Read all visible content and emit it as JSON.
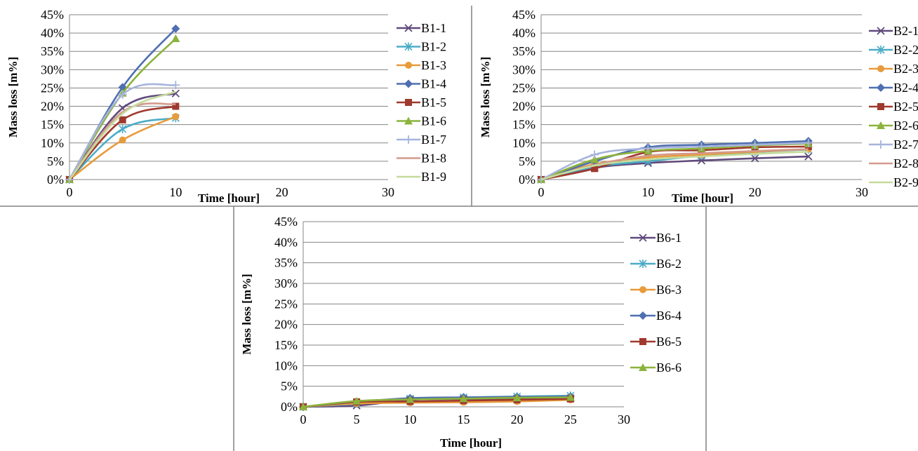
{
  "chart_data": [
    {
      "id": "B1",
      "type": "line",
      "xlabel": "Time [hour]",
      "ylabel": "Mass loss [m%]",
      "xlim": [
        0,
        30
      ],
      "ylim": [
        0,
        45
      ],
      "x_ticks": [
        "0",
        "10",
        "20",
        "30"
      ],
      "y_ticks": [
        "0%",
        "5%",
        "10%",
        "15%",
        "20%",
        "25%",
        "30%",
        "35%",
        "40%",
        "45%"
      ],
      "grid": "horizontal",
      "legend": "right",
      "series": [
        {
          "name": "B1-1",
          "color": "#604a7b",
          "marker": "x",
          "points": [
            [
              0,
              0
            ],
            [
              5,
              19.5
            ],
            [
              10,
              23.5
            ]
          ]
        },
        {
          "name": "B1-2",
          "color": "#4bacc6",
          "marker": "star",
          "points": [
            [
              0,
              0
            ],
            [
              5,
              13.8
            ],
            [
              10,
              16.8
            ]
          ]
        },
        {
          "name": "B1-3",
          "color": "#e79b3b",
          "marker": "circle",
          "points": [
            [
              0,
              0
            ],
            [
              5,
              10.8
            ],
            [
              10,
              17.2
            ]
          ]
        },
        {
          "name": "B1-4",
          "color": "#4f6fb0",
          "marker": "diamond",
          "points": [
            [
              0,
              0
            ],
            [
              5,
              25.2
            ],
            [
              10,
              41.2
            ]
          ]
        },
        {
          "name": "B1-5",
          "color": "#a0392d",
          "marker": "square",
          "points": [
            [
              0,
              0
            ],
            [
              5,
              16.3
            ],
            [
              10,
              20
            ]
          ]
        },
        {
          "name": "B1-6",
          "color": "#8cb33c",
          "marker": "triangle",
          "points": [
            [
              0,
              0
            ],
            [
              5,
              23.6
            ],
            [
              10,
              38.5
            ]
          ]
        },
        {
          "name": "B1-7",
          "color": "#a6b4dc",
          "marker": "plus",
          "points": [
            [
              0,
              0
            ],
            [
              5,
              23.2
            ],
            [
              10,
              25.8
            ]
          ]
        },
        {
          "name": "B1-8",
          "color": "#d49a8c",
          "marker": "none",
          "points": [
            [
              0,
              0
            ],
            [
              5,
              18.5
            ],
            [
              10,
              20.6
            ]
          ]
        },
        {
          "name": "B1-9",
          "color": "#c5db9c",
          "marker": "none",
          "points": [
            [
              0,
              0
            ],
            [
              5,
              18
            ],
            [
              10,
              24
            ]
          ]
        }
      ]
    },
    {
      "id": "B2",
      "type": "line",
      "xlabel": "Time [hour]",
      "ylabel": "Mass loss [m%]",
      "xlim": [
        0,
        30
      ],
      "ylim": [
        0,
        45
      ],
      "x_ticks": [
        "0",
        "10",
        "20",
        "30"
      ],
      "y_ticks": [
        "0%",
        "5%",
        "10%",
        "15%",
        "20%",
        "25%",
        "30%",
        "35%",
        "40%",
        "45%"
      ],
      "grid": "horizontal",
      "legend": "right",
      "series": [
        {
          "name": "B2-1",
          "color": "#604a7b",
          "marker": "x",
          "points": [
            [
              0,
              0
            ],
            [
              5,
              3.2
            ],
            [
              10,
              4.5
            ],
            [
              15,
              5.2
            ],
            [
              20,
              5.8
            ],
            [
              25,
              6.3
            ]
          ]
        },
        {
          "name": "B2-2",
          "color": "#4bacc6",
          "marker": "star",
          "points": [
            [
              0,
              0
            ],
            [
              5,
              3.5
            ],
            [
              10,
              5
            ],
            [
              15,
              6.5
            ],
            [
              20,
              7.5
            ],
            [
              25,
              8.2
            ]
          ]
        },
        {
          "name": "B2-3",
          "color": "#e79b3b",
          "marker": "circle",
          "points": [
            [
              0,
              0
            ],
            [
              5,
              4.2
            ],
            [
              10,
              6
            ],
            [
              15,
              6.8
            ],
            [
              20,
              7.6
            ],
            [
              25,
              8.3
            ]
          ]
        },
        {
          "name": "B2-4",
          "color": "#4f6fb0",
          "marker": "diamond",
          "points": [
            [
              0,
              0
            ],
            [
              5,
              5
            ],
            [
              10,
              8.8
            ],
            [
              15,
              9.5
            ],
            [
              20,
              10
            ],
            [
              25,
              10.5
            ]
          ]
        },
        {
          "name": "B2-5",
          "color": "#a0392d",
          "marker": "square",
          "points": [
            [
              0,
              0
            ],
            [
              5,
              3
            ],
            [
              10,
              7.5
            ],
            [
              15,
              8
            ],
            [
              20,
              8.8
            ],
            [
              25,
              9
            ]
          ]
        },
        {
          "name": "B2-6",
          "color": "#8cb33c",
          "marker": "triangle",
          "points": [
            [
              0,
              0
            ],
            [
              5,
              5.5
            ],
            [
              10,
              7.8
            ],
            [
              15,
              8.5
            ],
            [
              20,
              9.3
            ],
            [
              25,
              9.8
            ]
          ]
        },
        {
          "name": "B2-7",
          "color": "#a6b4dc",
          "marker": "plus",
          "points": [
            [
              0,
              0
            ],
            [
              5,
              6.8
            ],
            [
              10,
              8.5
            ],
            [
              15,
              9
            ],
            [
              20,
              9.5
            ],
            [
              25,
              10
            ]
          ]
        },
        {
          "name": "B2-8",
          "color": "#d49a8c",
          "marker": "none",
          "points": [
            [
              0,
              0
            ],
            [
              5,
              4
            ],
            [
              10,
              6.5
            ],
            [
              15,
              7.2
            ],
            [
              20,
              7.8
            ],
            [
              25,
              8.3
            ]
          ]
        },
        {
          "name": "B2-9",
          "color": "#c5db9c",
          "marker": "none",
          "points": [
            [
              0,
              0
            ],
            [
              5,
              3.8
            ],
            [
              10,
              5.5
            ],
            [
              15,
              6.3
            ],
            [
              20,
              7
            ],
            [
              25,
              7.6
            ]
          ]
        }
      ]
    },
    {
      "id": "B6",
      "type": "line",
      "xlabel": "Time  [hour]",
      "ylabel": "Mass loss [m%]",
      "xlim": [
        0,
        30
      ],
      "ylim": [
        0,
        45
      ],
      "x_ticks": [
        "0",
        "5",
        "10",
        "15",
        "20",
        "25",
        "30"
      ],
      "y_ticks": [
        "0%",
        "5%",
        "10%",
        "15%",
        "20%",
        "25%",
        "30%",
        "35%",
        "40%",
        "45%"
      ],
      "grid": "horizontal",
      "legend": "right",
      "series": [
        {
          "name": "B6-1",
          "color": "#604a7b",
          "marker": "x",
          "points": [
            [
              0,
              0
            ],
            [
              5,
              0.3
            ],
            [
              10,
              1.7
            ],
            [
              15,
              1.9
            ],
            [
              20,
              2
            ],
            [
              25,
              2.1
            ]
          ]
        },
        {
          "name": "B6-2",
          "color": "#4bacc6",
          "marker": "star",
          "points": [
            [
              0,
              0
            ],
            [
              5,
              0.8
            ],
            [
              10,
              2
            ],
            [
              15,
              2.3
            ],
            [
              20,
              2.5
            ],
            [
              25,
              2.7
            ]
          ]
        },
        {
          "name": "B6-3",
          "color": "#e79b3b",
          "marker": "circle",
          "points": [
            [
              0,
              0
            ],
            [
              5,
              0.8
            ],
            [
              10,
              1
            ],
            [
              15,
              1.1
            ],
            [
              20,
              1.3
            ],
            [
              25,
              1.7
            ]
          ]
        },
        {
          "name": "B6-4",
          "color": "#4f6fb0",
          "marker": "diamond",
          "points": [
            [
              0,
              0
            ],
            [
              5,
              1.2
            ],
            [
              10,
              2.1
            ],
            [
              15,
              2.3
            ],
            [
              20,
              2.4
            ],
            [
              25,
              2.5
            ]
          ]
        },
        {
          "name": "B6-5",
          "color": "#a0392d",
          "marker": "square",
          "points": [
            [
              0,
              0
            ],
            [
              5,
              1.2
            ],
            [
              10,
              1.3
            ],
            [
              15,
              1.5
            ],
            [
              20,
              1.7
            ],
            [
              25,
              1.9
            ]
          ]
        },
        {
          "name": "B6-6",
          "color": "#8cb33c",
          "marker": "triangle",
          "points": [
            [
              0,
              0
            ],
            [
              5,
              1.4
            ],
            [
              10,
              1.8
            ],
            [
              15,
              2
            ],
            [
              20,
              2.2
            ],
            [
              25,
              2.3
            ]
          ]
        }
      ]
    }
  ]
}
